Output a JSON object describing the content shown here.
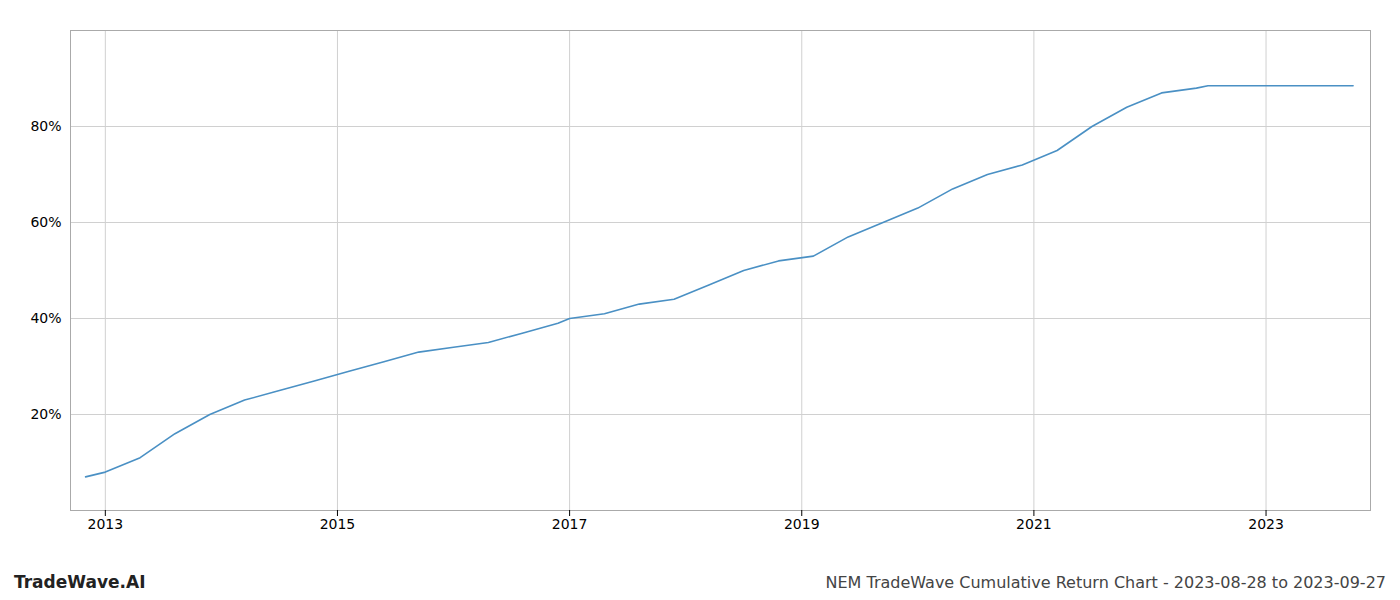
{
  "chart_data": {
    "type": "line",
    "title": "TradeWave.AI",
    "subtitle": "NEM TradeWave Cumulative Return Chart - 2023-08-28 to 2023-09-27",
    "x": [
      2012.83,
      2013.0,
      2013.3,
      2013.6,
      2013.9,
      2014.2,
      2014.5,
      2014.8,
      2015.1,
      2015.4,
      2015.7,
      2016.0,
      2016.3,
      2016.6,
      2016.9,
      2017.0,
      2017.3,
      2017.6,
      2017.9,
      2018.2,
      2018.5,
      2018.8,
      2019.1,
      2019.4,
      2019.7,
      2020.0,
      2020.3,
      2020.6,
      2020.9,
      2021.2,
      2021.5,
      2021.8,
      2022.1,
      2022.4,
      2022.5,
      2022.75,
      2023.0,
      2023.25,
      2023.75
    ],
    "values": [
      7,
      8,
      11,
      16,
      20,
      23,
      25,
      27,
      29,
      31,
      33,
      34,
      35,
      37,
      39,
      40,
      41,
      43,
      44,
      47,
      50,
      52,
      53,
      57,
      60,
      63,
      67,
      70,
      72,
      75,
      80,
      84,
      87,
      88,
      88.5,
      88.5,
      88.5,
      88.5,
      88.5
    ],
    "color": "#4a90c4",
    "xlim": [
      2012.7,
      2023.9
    ],
    "ylim": [
      0,
      100
    ],
    "xticks": [
      2013,
      2015,
      2017,
      2019,
      2021,
      2023
    ],
    "yticks": [
      {
        "value": 20,
        "label": "20%"
      },
      {
        "value": 40,
        "label": "40%"
      },
      {
        "value": 60,
        "label": "60%"
      },
      {
        "value": 80,
        "label": "80%"
      }
    ],
    "grid": true
  }
}
